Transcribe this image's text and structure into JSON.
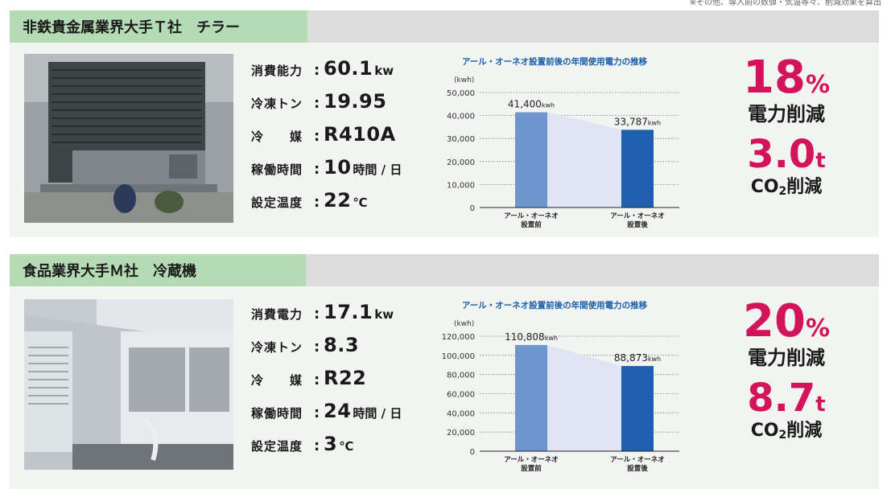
{
  "top_note": "※その他、導入前の数値・気温等々、削減効果を算出",
  "colors": {
    "tab_green": "#b5dbb5",
    "header_gray": "#dcdcdc",
    "accent_pink": "#d4145a",
    "chart_title_blue": "#1a5fa8",
    "bar_before": "#6f96cf",
    "bar_after": "#1f5fb0",
    "band": "#dfe3f2"
  },
  "cases": [
    {
      "title": "非鉄貴金属業界大手Ｔ社　チラー",
      "photo_icon": "chiller-unit-photo",
      "specs": [
        {
          "label": "消費能力",
          "value": "60.1",
          "unit": "kw"
        },
        {
          "label": "冷凍トン",
          "value": "19.95",
          "unit": ""
        },
        {
          "label": "冷　　媒",
          "value": "R410A",
          "unit": ""
        },
        {
          "label": "稼働時間",
          "value": "10",
          "unit": "時間 / 日"
        },
        {
          "label": "設定温度",
          "value": "22",
          "unit": "℃"
        }
      ],
      "result": {
        "percent": "18",
        "percent_unit": "%",
        "percent_label": "電力削減",
        "co2_value": "3.0",
        "co2_unit": "t",
        "co2_label_a": "CO",
        "co2_label_sub": "2",
        "co2_label_b": "削減"
      }
    },
    {
      "title": "食品業界大手Ｍ社　冷蔵機",
      "photo_icon": "refrigeration-unit-photo",
      "specs": [
        {
          "label": "消費電力",
          "value": "17.1",
          "unit": "kw"
        },
        {
          "label": "冷凍トン",
          "value": "8.3",
          "unit": ""
        },
        {
          "label": "冷　　媒",
          "value": "R22",
          "unit": ""
        },
        {
          "label": "稼働時間",
          "value": "24",
          "unit": "時間 / 日"
        },
        {
          "label": "設定温度",
          "value": "3",
          "unit": "℃"
        }
      ],
      "result": {
        "percent": "20",
        "percent_unit": "%",
        "percent_label": "電力削減",
        "co2_value": "8.7",
        "co2_unit": "t",
        "co2_label_a": "CO",
        "co2_label_sub": "2",
        "co2_label_b": "削減"
      }
    }
  ],
  "chart_data": [
    {
      "type": "bar",
      "title": "アール・オーネオ設置前後の年間使用電力の推移",
      "ylabel": "(kwh)",
      "ylim": [
        0,
        50000
      ],
      "yticks": [
        0,
        10000,
        20000,
        30000,
        40000,
        50000
      ],
      "ytick_labels": [
        "0",
        "10,000",
        "20,000",
        "30,000",
        "40,000",
        "50,000"
      ],
      "categories": [
        [
          "アール・オーネオ",
          "設置前"
        ],
        [
          "アール・オーネオ",
          "設置後"
        ]
      ],
      "values": [
        41400,
        33787
      ],
      "value_labels": [
        "41,400",
        "33,787"
      ],
      "value_unit": "kwh",
      "grid": true
    },
    {
      "type": "bar",
      "title": "アール・オーネオ設置前後の年間使用電力の推移",
      "ylabel": "(kwh)",
      "ylim": [
        0,
        120000
      ],
      "yticks": [
        0,
        20000,
        40000,
        60000,
        80000,
        100000,
        120000
      ],
      "ytick_labels": [
        "0",
        "20,000",
        "40,000",
        "60,000",
        "80,000",
        "100,000",
        "120,000"
      ],
      "categories": [
        [
          "アール・オーネオ",
          "設置前"
        ],
        [
          "アール・オーネオ",
          "設置後"
        ]
      ],
      "values": [
        110808,
        88873
      ],
      "value_labels": [
        "110,808",
        "88,873"
      ],
      "value_unit": "kwh",
      "grid": true
    }
  ]
}
